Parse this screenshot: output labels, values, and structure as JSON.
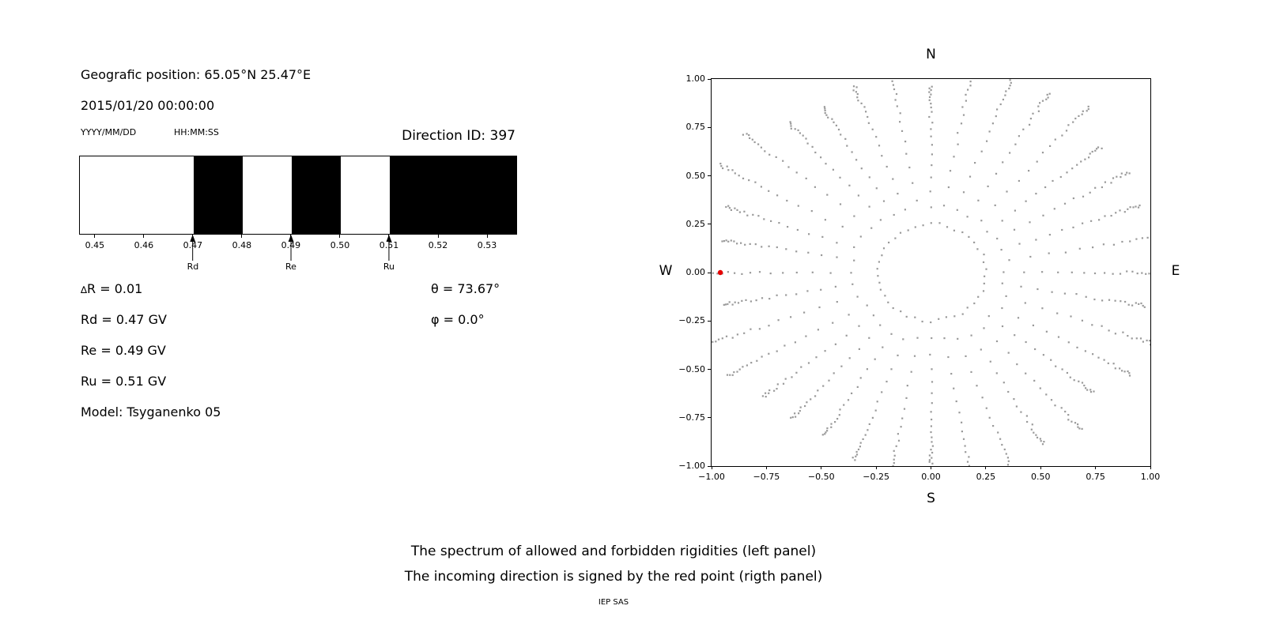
{
  "left_panel": {
    "geo_position": "Geografic position: 65.05°N 25.47°E",
    "datetime": "2015/01/20 00:00:00",
    "date_format_label": "YYYY/MM/DD",
    "time_format_label": "HH:MM:SS",
    "params": {
      "delta_symbol": "∆",
      "delta_text": "R = 0.01",
      "rd": "Rd = 0.47 GV",
      "re": "Re = 0.49 GV",
      "ru": "Ru = 0.51 GV",
      "model": "Model: Tsyganenko 05",
      "theta": "θ  = 73.67°",
      "phi": "φ = 0.0°"
    }
  },
  "caption": {
    "line1": "The spectrum of allowed and forbidden rigidities (left panel)",
    "line2": "The incoming direction is signed by the red point (rigth panel)",
    "credit": "IEP SAS"
  },
  "chart_data": [
    {
      "type": "bar",
      "id": "rigidity-spectrum",
      "title": "Direction ID: 397",
      "xlim": [
        0.4468,
        0.5358
      ],
      "x_tick_values": [
        0.45,
        0.46,
        0.47,
        0.48,
        0.49,
        0.5,
        0.51,
        0.52,
        0.53
      ],
      "x_tick_labels": [
        "0.45",
        "0.46",
        "0.47",
        "0.48",
        "0.49",
        "0.50",
        "0.51",
        "0.52",
        "0.53"
      ],
      "bar_color": "#000000",
      "forbidden_segments": [
        [
          0.47,
          0.48
        ],
        [
          0.49,
          0.5
        ],
        [
          0.51,
          0.5358
        ]
      ],
      "markers": [
        {
          "label": "Rd",
          "x": 0.47
        },
        {
          "label": "Re",
          "x": 0.49
        },
        {
          "label": "Ru",
          "x": 0.51
        }
      ]
    },
    {
      "type": "scatter",
      "id": "asymptotic-directions",
      "xlim": [
        -1,
        1
      ],
      "ylim": [
        -1,
        1
      ],
      "x_tick_values": [
        -1,
        -0.75,
        -0.5,
        -0.25,
        0,
        0.25,
        0.5,
        0.75,
        1
      ],
      "x_tick_labels": [
        "−1.00",
        "−0.75",
        "−0.50",
        "−0.25",
        "0.00",
        "0.25",
        "0.50",
        "0.75",
        "1.00"
      ],
      "y_tick_values": [
        -1,
        -0.75,
        -0.5,
        -0.25,
        0,
        0.25,
        0.5,
        0.75,
        1
      ],
      "y_tick_labels": [
        "−1.00",
        "−0.75",
        "−0.50",
        "−0.25",
        "0.00",
        "0.25",
        "0.50",
        "0.75",
        "1.00"
      ],
      "compass": {
        "top": "N",
        "bottom": "S",
        "left": "W",
        "right": "E"
      },
      "dot_color": "#9a9a9a",
      "red_point": {
        "x": -0.96,
        "y": 0.0,
        "color": "#e60000"
      },
      "pattern": {
        "spokes": 36,
        "dots_per_spoke": 20,
        "spoke_r_start": 0.33,
        "spoke_r_end_min": 0.95,
        "spoke_r_end_max": 1.12,
        "gap_decay": 0.88,
        "inner_ring_radius": 0.25,
        "inner_ring_dots": 42
      }
    }
  ]
}
